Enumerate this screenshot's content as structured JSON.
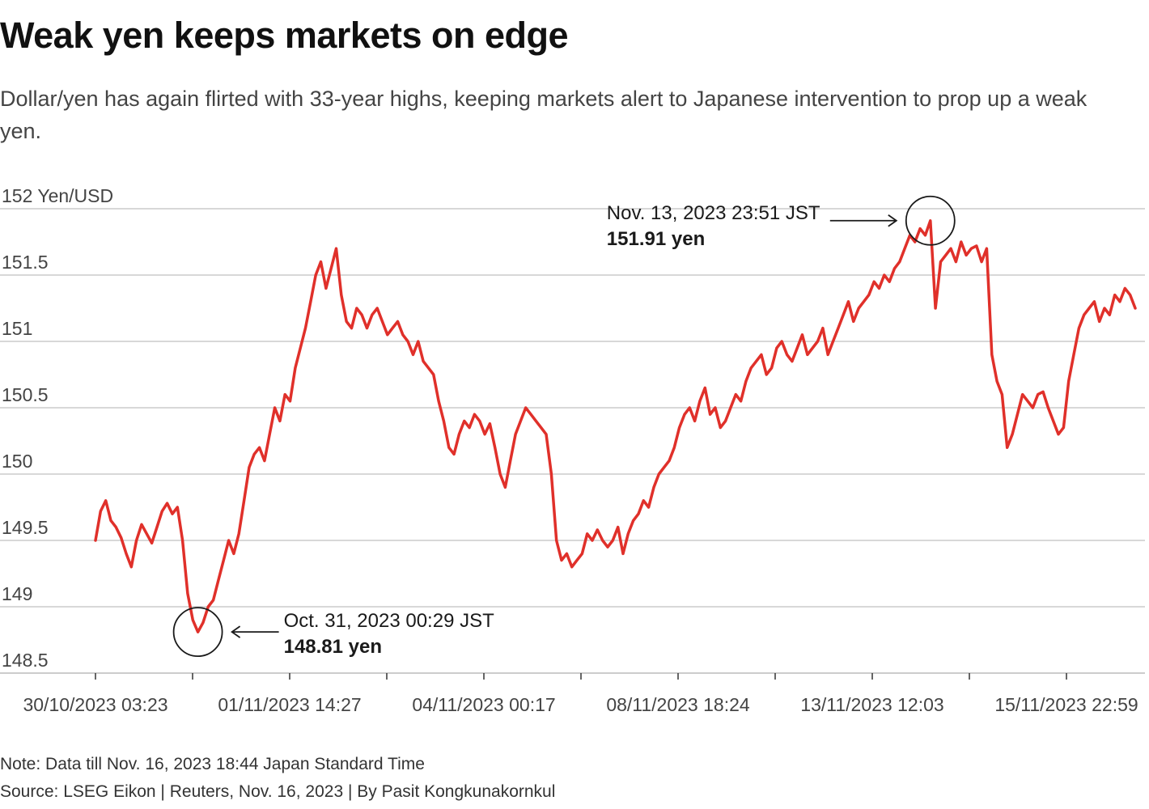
{
  "header": {
    "title": "Weak yen keeps markets on edge",
    "subtitle": "Dollar/yen has again flirted with 33-year highs, keeping markets alert to Japanese intervention to prop up a weak yen."
  },
  "footer": {
    "note": "Note: Data till Nov. 16, 2023 18:44 Japan Standard Time",
    "source": "Source: LSEG Eikon | Reuters, Nov. 16, 2023 | By Pasit Kongkunakornkul"
  },
  "chart_data": {
    "type": "line",
    "title": "Weak yen keeps markets on edge",
    "ylabel": "Yen/USD",
    "ylim": [
      148.5,
      152
    ],
    "yticks": [
      148.5,
      149,
      149.5,
      150,
      150.5,
      151,
      151.5,
      152
    ],
    "ytick_labels": [
      "148.5",
      "149",
      "149.5",
      "150",
      "150.5",
      "151",
      "151.5",
      "152 Yen/USD"
    ],
    "xtick_labels": [
      "30/10/2023 03:23",
      "01/11/2023 14:27",
      "04/11/2023 00:17",
      "08/11/2023 18:24",
      "13/11/2023 12:03",
      "15/11/2023 22:59"
    ],
    "grid": true,
    "line_color": "#e0302a",
    "series": [
      {
        "values": [
          149.5,
          149.72,
          149.8,
          149.65,
          149.6,
          149.52,
          149.4,
          149.3,
          149.5,
          149.62,
          149.55,
          149.48,
          149.6,
          149.72,
          149.78,
          149.7,
          149.75,
          149.5,
          149.1,
          148.9,
          148.81,
          148.88,
          149.0,
          149.05,
          149.2,
          149.35,
          149.5,
          149.4,
          149.55,
          149.8,
          150.05,
          150.15,
          150.2,
          150.1,
          150.3,
          150.5,
          150.4,
          150.6,
          150.55,
          150.8,
          150.95,
          151.1,
          151.3,
          151.5,
          151.6,
          151.4,
          151.55,
          151.7,
          151.35,
          151.15,
          151.1,
          151.25,
          151.2,
          151.1,
          151.2,
          151.25,
          151.15,
          151.05,
          151.1,
          151.15,
          151.05,
          151.0,
          150.9,
          151.0,
          150.85,
          150.8,
          150.75,
          150.55,
          150.4,
          150.2,
          150.15,
          150.3,
          150.4,
          150.35,
          150.45,
          150.4,
          150.3,
          150.38,
          150.2,
          150.0,
          149.9,
          150.1,
          150.3,
          150.4,
          150.5,
          150.45,
          150.4,
          150.35,
          150.3,
          150.0,
          149.5,
          149.35,
          149.4,
          149.3,
          149.35,
          149.4,
          149.55,
          149.5,
          149.58,
          149.5,
          149.45,
          149.5,
          149.6,
          149.4,
          149.55,
          149.65,
          149.7,
          149.8,
          149.75,
          149.9,
          150.0,
          150.05,
          150.1,
          150.2,
          150.35,
          150.45,
          150.5,
          150.4,
          150.55,
          150.65,
          150.45,
          150.5,
          150.35,
          150.4,
          150.5,
          150.6,
          150.55,
          150.7,
          150.8,
          150.85,
          150.9,
          150.75,
          150.8,
          150.95,
          151.0,
          150.9,
          150.85,
          150.95,
          151.05,
          150.9,
          150.95,
          151.0,
          151.1,
          150.9,
          151.0,
          151.1,
          151.2,
          151.3,
          151.15,
          151.25,
          151.3,
          151.35,
          151.45,
          151.4,
          151.5,
          151.45,
          151.55,
          151.6,
          151.7,
          151.8,
          151.75,
          151.85,
          151.8,
          151.91,
          151.25,
          151.6,
          151.65,
          151.7,
          151.6,
          151.75,
          151.65,
          151.7,
          151.72,
          151.6,
          151.7,
          150.9,
          150.7,
          150.6,
          150.2,
          150.3,
          150.45,
          150.6,
          150.55,
          150.5,
          150.6,
          150.62,
          150.5,
          150.4,
          150.3,
          150.35,
          150.7,
          150.9,
          151.1,
          151.2,
          151.25,
          151.3,
          151.15,
          151.25,
          151.2,
          151.35,
          151.3,
          151.4,
          151.35,
          151.25
        ]
      }
    ],
    "annotations": [
      {
        "label": "Oct. 31, 2023 00:29 JST",
        "value_label": "148.81 yen",
        "value": 148.81
      },
      {
        "label": "Nov. 13, 2023 23:51 JST",
        "value_label": "151.91 yen",
        "value": 151.91
      }
    ]
  }
}
